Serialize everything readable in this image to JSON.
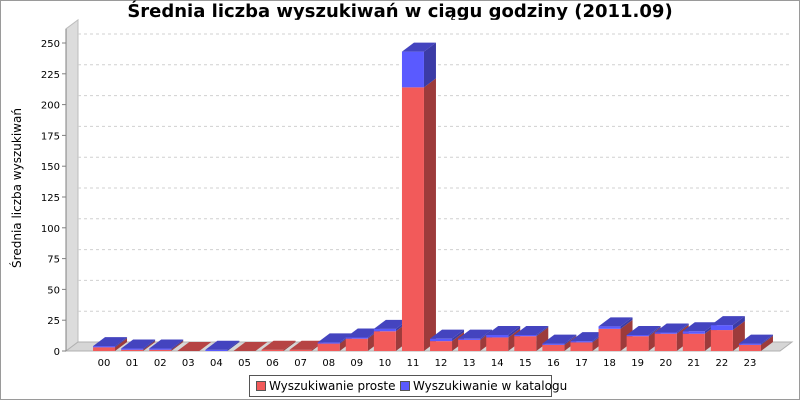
{
  "chart_data": {
    "type": "bar",
    "stacked": true,
    "three_d": true,
    "title": "Średnia liczba wyszukiwań w ciągu godziny (2011.09)",
    "xlabel": "",
    "ylabel": "Średnia liczba wyszukiwań",
    "ylim": [
      0,
      250
    ],
    "yticks": [
      0,
      25,
      50,
      75,
      100,
      125,
      150,
      175,
      200,
      225,
      250
    ],
    "grid": true,
    "legend_position": "bottom",
    "categories": [
      "00",
      "01",
      "02",
      "03",
      "04",
      "05",
      "06",
      "07",
      "08",
      "09",
      "10",
      "11",
      "12",
      "13",
      "14",
      "15",
      "16",
      "17",
      "18",
      "19",
      "20",
      "21",
      "22",
      "23"
    ],
    "series": [
      {
        "name": "Wyszukiwanie proste",
        "color": "#f25a5a",
        "values": [
          3,
          1,
          1,
          0,
          0,
          0,
          1,
          1,
          6,
          10,
          16,
          214,
          8,
          9,
          11,
          12,
          5,
          7,
          18,
          12,
          14,
          14,
          17,
          5
        ]
      },
      {
        "name": "Wyszukiwanie w katalogu",
        "color": "#5a5aff",
        "values": [
          1,
          1,
          1,
          0,
          1,
          0,
          0,
          0,
          1,
          1,
          2,
          29,
          2,
          1,
          2,
          1,
          1,
          1,
          2,
          1,
          1,
          2,
          4,
          1
        ]
      }
    ]
  }
}
